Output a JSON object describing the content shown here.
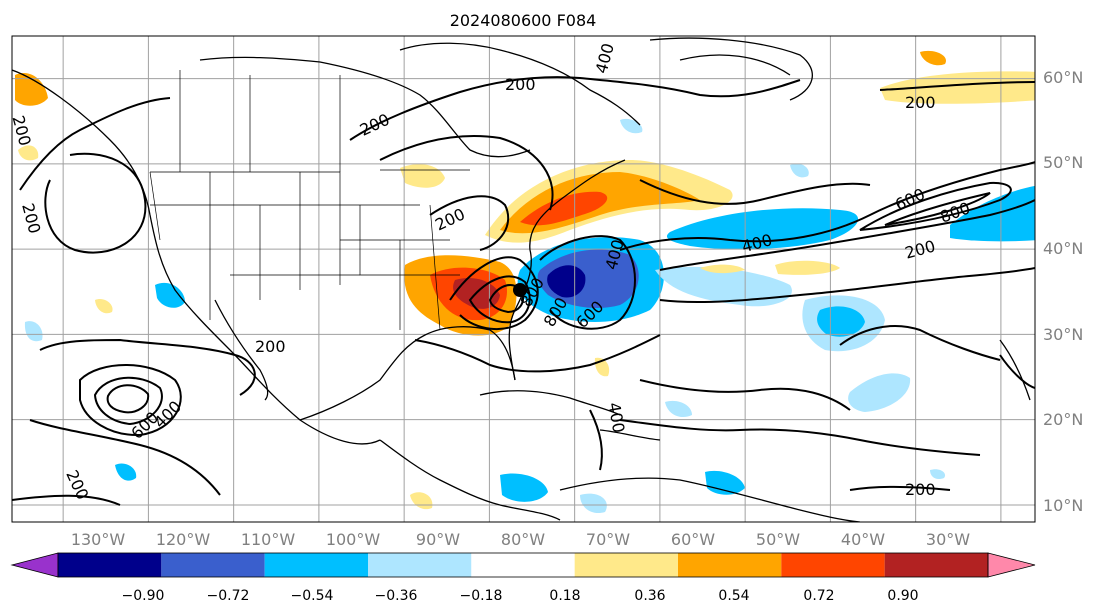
{
  "title": "2024080600 F084",
  "map": {
    "lon_ticks": [
      "130°W",
      "120°W",
      "110°W",
      "100°W",
      "90°W",
      "80°W",
      "70°W",
      "60°W",
      "50°W",
      "40°W",
      "30°W"
    ],
    "lat_ticks": [
      "60°N",
      "50°N",
      "40°N",
      "30°N",
      "20°N",
      "10°N"
    ],
    "lon_range": [
      -136,
      -16
    ],
    "lat_range": [
      8,
      65
    ],
    "contour_labels": [
      "200",
      "200",
      "200",
      "200",
      "200",
      "200",
      "200",
      "200",
      "200",
      "200",
      "400",
      "400",
      "400",
      "400",
      "400",
      "600",
      "600",
      "600",
      "800",
      "800",
      "800"
    ]
  },
  "colorbar": {
    "tick_labels": [
      "−0.90",
      "−0.72",
      "−0.54",
      "−0.36",
      "−0.18",
      "0.18",
      "0.36",
      "0.54",
      "0.72",
      "0.90"
    ],
    "colors": [
      "#9932cc",
      "#00008b",
      "#3a5fcd",
      "#00bfff",
      "#aee6ff",
      "#ffffff",
      "#ffe98a",
      "#ffa500",
      "#ff4500",
      "#b22222",
      "#ff88aa"
    ]
  }
}
